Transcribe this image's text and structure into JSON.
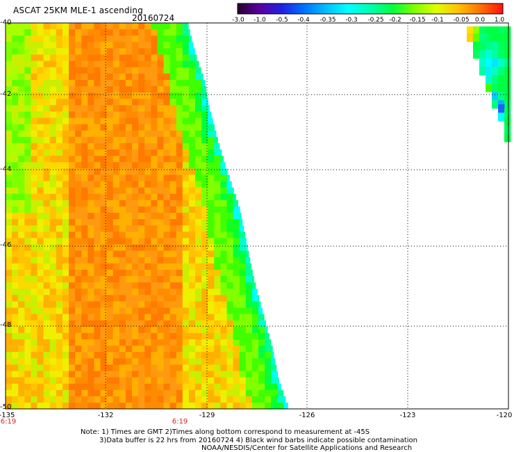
{
  "header": {
    "title": "ASCAT 25KM MLE-1 ascending",
    "date": "20160724"
  },
  "colorbar": {
    "tick_labels": [
      "-3.0",
      "-1.0",
      "-0.5",
      "-0.4",
      "-0.35",
      "-0.3",
      "-0.25",
      "-0.2",
      "-0.15",
      "-0.1",
      "-0.05",
      "0.0",
      "1.0"
    ],
    "colors": [
      "#2a002a",
      "#5a00a0",
      "#2020e0",
      "#0070ff",
      "#00c0ff",
      "#00ffff",
      "#00ffb0",
      "#00ff40",
      "#80ff00",
      "#e0ff00",
      "#ffc000",
      "#ff7000",
      "#ff1010"
    ]
  },
  "axes": {
    "lat_labels": [
      "-40",
      "-42",
      "-44",
      "-46",
      "-48",
      "-50"
    ],
    "lon_labels": [
      "-135",
      "-132",
      "-129",
      "-126",
      "-123",
      "-120"
    ],
    "grid": "dotted"
  },
  "time_labels": [
    "6:19",
    "6:19"
  ],
  "notes": {
    "line1": "Note: 1) Times are GMT 2)Times along bottom correspond to measurement at -45S",
    "line2": "3)Data buffer is 22 hrs from 20160724 4) Black wind barbs indicate possible contamination",
    "line3": "NOAA/NESDIS/Center for Satellite Applications and Research"
  }
}
